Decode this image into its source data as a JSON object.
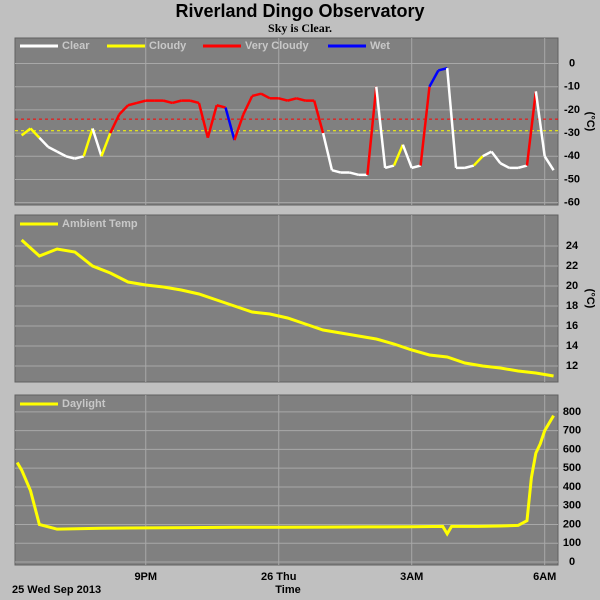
{
  "title": "Riverland Dingo Observatory",
  "subtitle": "Sky is Clear.",
  "x_axis": {
    "label": "Time",
    "start_label": "25 Wed Sep 2013",
    "xlim": [
      18.05,
      30.3
    ],
    "xticks": [
      {
        "value": 21,
        "label": "9PM"
      },
      {
        "value": 24,
        "label": "26 Thu"
      },
      {
        "value": 27,
        "label": "3AM"
      },
      {
        "value": 30,
        "label": "6AM"
      }
    ]
  },
  "chart_data": [
    {
      "type": "state_line",
      "ylabel": "(°C)",
      "ylim": [
        -61,
        11
      ],
      "yticks": [
        0,
        -10,
        -20,
        -30,
        -40,
        -50,
        -60
      ],
      "legend": [
        {
          "name": "Clear",
          "color": "#ffffff"
        },
        {
          "name": "Cloudy",
          "color": "#ffff00"
        },
        {
          "name": "Very Cloudy",
          "color": "#ff0000"
        },
        {
          "name": "Wet",
          "color": "#0000ff"
        }
      ],
      "thresholds": [
        {
          "value": -24,
          "color": "#ff0000"
        },
        {
          "value": -29,
          "color": "#ffff00"
        }
      ],
      "x": [
        18.2,
        18.4,
        18.6,
        18.8,
        19.0,
        19.2,
        19.4,
        19.6,
        19.8,
        20.0,
        20.2,
        20.4,
        20.6,
        20.8,
        21.0,
        21.2,
        21.4,
        21.6,
        21.8,
        22.0,
        22.2,
        22.4,
        22.6,
        22.8,
        23.0,
        23.2,
        23.4,
        23.6,
        23.8,
        24.0,
        24.2,
        24.4,
        24.6,
        24.8,
        25.0,
        25.2,
        25.4,
        25.6,
        25.8,
        26.0,
        26.2,
        26.4,
        26.6,
        26.8,
        27.0,
        27.2,
        27.4,
        27.6,
        27.8,
        28.0,
        28.2,
        28.4,
        28.6,
        28.8,
        29.0,
        29.2,
        29.4,
        29.6,
        29.8,
        30.0,
        30.2
      ],
      "values": [
        -31,
        -28,
        -32,
        -36,
        -38,
        -40,
        -41,
        -40,
        -28,
        -40,
        -30,
        -22,
        -18,
        -17,
        -16,
        -16,
        -16,
        -17,
        -16,
        -16,
        -17,
        -32,
        -18,
        -19,
        -33,
        -22,
        -14,
        -13,
        -15,
        -15,
        -16,
        -15,
        -16,
        -16,
        -30,
        -46,
        -47,
        -47,
        -48,
        -48,
        -10,
        -45,
        -44,
        -35,
        -45,
        -44,
        -10,
        -3,
        -2,
        -45,
        -45,
        -44,
        -40,
        -38,
        -43,
        -45,
        -45,
        -44,
        -12,
        -40,
        -46
      ],
      "states": [
        "Cloudy",
        "Cloudy",
        "Cloudy",
        "Clear",
        "Clear",
        "Clear",
        "Clear",
        "Clear",
        "Cloudy",
        "Clear",
        "Cloudy",
        "Very Cloudy",
        "Very Cloudy",
        "Very Cloudy",
        "Very Cloudy",
        "Very Cloudy",
        "Very Cloudy",
        "Very Cloudy",
        "Very Cloudy",
        "Very Cloudy",
        "Very Cloudy",
        "Very Cloudy",
        "Very Cloudy",
        "Very Cloudy",
        "Wet",
        "Very Cloudy",
        "Very Cloudy",
        "Very Cloudy",
        "Very Cloudy",
        "Very Cloudy",
        "Very Cloudy",
        "Very Cloudy",
        "Very Cloudy",
        "Very Cloudy",
        "Very Cloudy",
        "Clear",
        "Clear",
        "Clear",
        "Clear",
        "Clear",
        "Very Cloudy",
        "Clear",
        "Clear",
        "Cloudy",
        "Clear",
        "Clear",
        "Very Cloudy",
        "Wet",
        "Wet",
        "Clear",
        "Clear",
        "Clear",
        "Cloudy",
        "Clear",
        "Clear",
        "Clear",
        "Clear",
        "Clear",
        "Very Cloudy",
        "Clear",
        "Clear"
      ]
    },
    {
      "type": "line",
      "ylabel": "(°C)",
      "ylim": [
        10.4,
        27.1
      ],
      "yticks": [
        12,
        14,
        16,
        18,
        20,
        22,
        24
      ],
      "x": [
        18.2,
        18.6,
        19.0,
        19.4,
        19.8,
        20.2,
        20.6,
        21.0,
        21.4,
        21.8,
        22.2,
        22.6,
        23.0,
        23.4,
        23.8,
        24.2,
        24.6,
        25.0,
        25.4,
        25.8,
        26.2,
        26.6,
        27.0,
        27.4,
        27.8,
        28.2,
        28.6,
        29.0,
        29.4,
        29.8,
        30.2
      ],
      "series": [
        {
          "name": "Ambient Temp",
          "color": "#ffff00",
          "values": [
            24.6,
            23.0,
            23.7,
            23.4,
            22.0,
            21.3,
            20.4,
            20.1,
            19.9,
            19.6,
            19.2,
            18.6,
            18.0,
            17.4,
            17.2,
            16.8,
            16.2,
            15.6,
            15.3,
            15.0,
            14.7,
            14.2,
            13.6,
            13.1,
            12.9,
            12.3,
            12.0,
            11.8,
            11.5,
            11.3,
            11.0
          ]
        }
      ]
    },
    {
      "type": "line",
      "ylim": [
        -16,
        890
      ],
      "yticks": [
        0,
        100,
        200,
        300,
        400,
        500,
        600,
        700,
        800
      ],
      "x": [
        18.1,
        18.2,
        18.4,
        18.6,
        19,
        20,
        21,
        22,
        23,
        24,
        25,
        26,
        27,
        27.7,
        27.8,
        27.9,
        28.5,
        29,
        29.4,
        29.6,
        29.7,
        29.8,
        29.9,
        30.0,
        30.2
      ],
      "series": [
        {
          "name": "Daylight",
          "color": "#ffff00",
          "values": [
            530,
            490,
            380,
            200,
            175,
            180,
            182,
            183,
            185,
            185,
            186,
            187,
            188,
            190,
            150,
            190,
            190,
            192,
            195,
            220,
            450,
            580,
            630,
            700,
            780
          ]
        }
      ]
    }
  ]
}
